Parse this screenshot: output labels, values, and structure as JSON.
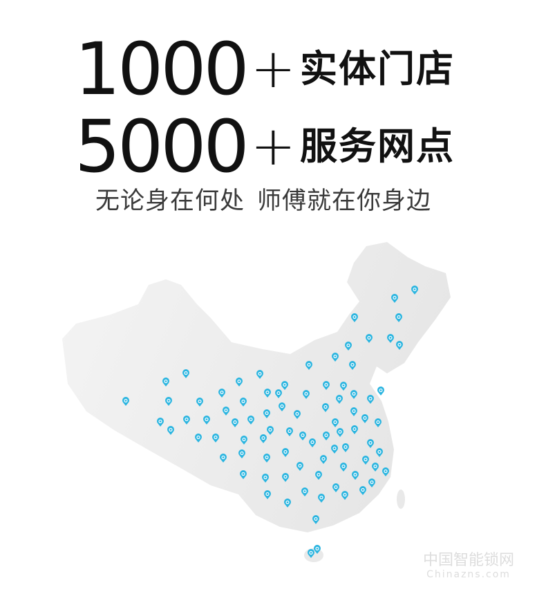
{
  "headline": {
    "stores": {
      "number": "1000",
      "plus": "+",
      "label": "实体门店"
    },
    "outlets": {
      "number": "5000",
      "plus": "+",
      "label": "服务网点"
    }
  },
  "subtitle": {
    "part1": "无论身在何处",
    "part2": "师傅就在你身边"
  },
  "map": {
    "region": "China",
    "pin_icon": "map-pin-icon",
    "pin_color": "#2bb5e0",
    "map_fill": "#ececec"
  },
  "watermark": {
    "cn": "中国智能锁网",
    "en": "Chinazns.com"
  }
}
